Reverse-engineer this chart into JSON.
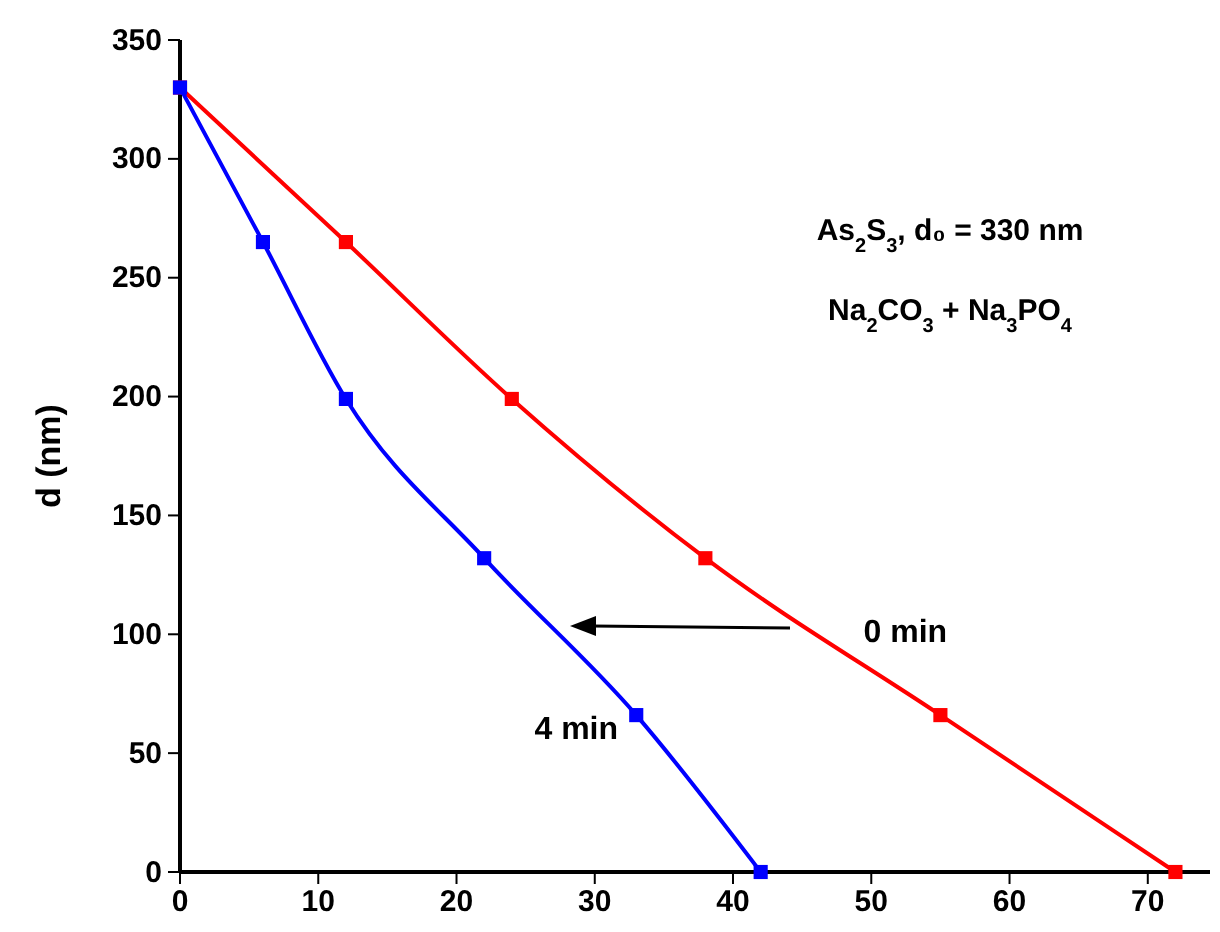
{
  "chart_data": {
    "type": "line",
    "ylabel": "d (nm)",
    "xlim": [
      0,
      74.5
    ],
    "ylim": [
      0,
      350
    ],
    "xticks": [
      0,
      10,
      20,
      30,
      40,
      50,
      60,
      70
    ],
    "yticks": [
      0,
      50,
      100,
      150,
      200,
      250,
      300,
      350
    ],
    "marker": "square",
    "annotations": [
      "As$_{2}$S$_{3}$, d₀ = 330 nm",
      "Na$_{2}$CO$_{3}$ + Na$_{3}$PO$_{4}$"
    ],
    "series": [
      {
        "name": "0 min",
        "color": "#ff0000",
        "x": [
          0,
          12,
          24,
          38,
          55,
          72
        ],
        "values": [
          330,
          265,
          199,
          132,
          66,
          0
        ]
      },
      {
        "name": "4 min",
        "color": "#0000ff",
        "x": [
          0,
          6,
          12,
          22,
          33,
          42
        ],
        "values": [
          330,
          265,
          199,
          132,
          66,
          0
        ]
      }
    ]
  }
}
